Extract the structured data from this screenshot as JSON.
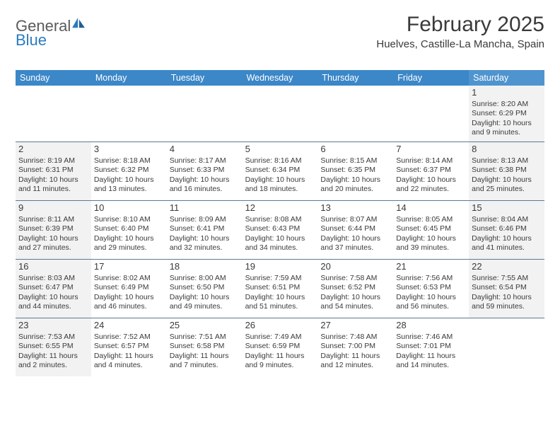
{
  "brand": {
    "word1": "General",
    "word2": "Blue",
    "color1": "#5a5a5a",
    "color2": "#2b7bbf"
  },
  "title": "February 2025",
  "location": "Huelves, Castille-La Mancha, Spain",
  "colors": {
    "header_bg": "#3b87c8",
    "header_sat_bg": "#4f94cf",
    "header_text": "#ffffff",
    "weekend_cell_bg": "#f2f2f2",
    "week_border": "#5a7a95",
    "body_text": "#3a3a3a"
  },
  "weekdays": [
    "Sunday",
    "Monday",
    "Tuesday",
    "Wednesday",
    "Thursday",
    "Friday",
    "Saturday"
  ],
  "weeks": [
    [
      null,
      null,
      null,
      null,
      null,
      null,
      {
        "n": "1",
        "sr": "Sunrise: 8:20 AM",
        "ss": "Sunset: 6:29 PM",
        "dl1": "Daylight: 10 hours",
        "dl2": "and 9 minutes."
      }
    ],
    [
      {
        "n": "2",
        "sr": "Sunrise: 8:19 AM",
        "ss": "Sunset: 6:31 PM",
        "dl1": "Daylight: 10 hours",
        "dl2": "and 11 minutes."
      },
      {
        "n": "3",
        "sr": "Sunrise: 8:18 AM",
        "ss": "Sunset: 6:32 PM",
        "dl1": "Daylight: 10 hours",
        "dl2": "and 13 minutes."
      },
      {
        "n": "4",
        "sr": "Sunrise: 8:17 AM",
        "ss": "Sunset: 6:33 PM",
        "dl1": "Daylight: 10 hours",
        "dl2": "and 16 minutes."
      },
      {
        "n": "5",
        "sr": "Sunrise: 8:16 AM",
        "ss": "Sunset: 6:34 PM",
        "dl1": "Daylight: 10 hours",
        "dl2": "and 18 minutes."
      },
      {
        "n": "6",
        "sr": "Sunrise: 8:15 AM",
        "ss": "Sunset: 6:35 PM",
        "dl1": "Daylight: 10 hours",
        "dl2": "and 20 minutes."
      },
      {
        "n": "7",
        "sr": "Sunrise: 8:14 AM",
        "ss": "Sunset: 6:37 PM",
        "dl1": "Daylight: 10 hours",
        "dl2": "and 22 minutes."
      },
      {
        "n": "8",
        "sr": "Sunrise: 8:13 AM",
        "ss": "Sunset: 6:38 PM",
        "dl1": "Daylight: 10 hours",
        "dl2": "and 25 minutes."
      }
    ],
    [
      {
        "n": "9",
        "sr": "Sunrise: 8:11 AM",
        "ss": "Sunset: 6:39 PM",
        "dl1": "Daylight: 10 hours",
        "dl2": "and 27 minutes."
      },
      {
        "n": "10",
        "sr": "Sunrise: 8:10 AM",
        "ss": "Sunset: 6:40 PM",
        "dl1": "Daylight: 10 hours",
        "dl2": "and 29 minutes."
      },
      {
        "n": "11",
        "sr": "Sunrise: 8:09 AM",
        "ss": "Sunset: 6:41 PM",
        "dl1": "Daylight: 10 hours",
        "dl2": "and 32 minutes."
      },
      {
        "n": "12",
        "sr": "Sunrise: 8:08 AM",
        "ss": "Sunset: 6:43 PM",
        "dl1": "Daylight: 10 hours",
        "dl2": "and 34 minutes."
      },
      {
        "n": "13",
        "sr": "Sunrise: 8:07 AM",
        "ss": "Sunset: 6:44 PM",
        "dl1": "Daylight: 10 hours",
        "dl2": "and 37 minutes."
      },
      {
        "n": "14",
        "sr": "Sunrise: 8:05 AM",
        "ss": "Sunset: 6:45 PM",
        "dl1": "Daylight: 10 hours",
        "dl2": "and 39 minutes."
      },
      {
        "n": "15",
        "sr": "Sunrise: 8:04 AM",
        "ss": "Sunset: 6:46 PM",
        "dl1": "Daylight: 10 hours",
        "dl2": "and 41 minutes."
      }
    ],
    [
      {
        "n": "16",
        "sr": "Sunrise: 8:03 AM",
        "ss": "Sunset: 6:47 PM",
        "dl1": "Daylight: 10 hours",
        "dl2": "and 44 minutes."
      },
      {
        "n": "17",
        "sr": "Sunrise: 8:02 AM",
        "ss": "Sunset: 6:49 PM",
        "dl1": "Daylight: 10 hours",
        "dl2": "and 46 minutes."
      },
      {
        "n": "18",
        "sr": "Sunrise: 8:00 AM",
        "ss": "Sunset: 6:50 PM",
        "dl1": "Daylight: 10 hours",
        "dl2": "and 49 minutes."
      },
      {
        "n": "19",
        "sr": "Sunrise: 7:59 AM",
        "ss": "Sunset: 6:51 PM",
        "dl1": "Daylight: 10 hours",
        "dl2": "and 51 minutes."
      },
      {
        "n": "20",
        "sr": "Sunrise: 7:58 AM",
        "ss": "Sunset: 6:52 PM",
        "dl1": "Daylight: 10 hours",
        "dl2": "and 54 minutes."
      },
      {
        "n": "21",
        "sr": "Sunrise: 7:56 AM",
        "ss": "Sunset: 6:53 PM",
        "dl1": "Daylight: 10 hours",
        "dl2": "and 56 minutes."
      },
      {
        "n": "22",
        "sr": "Sunrise: 7:55 AM",
        "ss": "Sunset: 6:54 PM",
        "dl1": "Daylight: 10 hours",
        "dl2": "and 59 minutes."
      }
    ],
    [
      {
        "n": "23",
        "sr": "Sunrise: 7:53 AM",
        "ss": "Sunset: 6:55 PM",
        "dl1": "Daylight: 11 hours",
        "dl2": "and 2 minutes."
      },
      {
        "n": "24",
        "sr": "Sunrise: 7:52 AM",
        "ss": "Sunset: 6:57 PM",
        "dl1": "Daylight: 11 hours",
        "dl2": "and 4 minutes."
      },
      {
        "n": "25",
        "sr": "Sunrise: 7:51 AM",
        "ss": "Sunset: 6:58 PM",
        "dl1": "Daylight: 11 hours",
        "dl2": "and 7 minutes."
      },
      {
        "n": "26",
        "sr": "Sunrise: 7:49 AM",
        "ss": "Sunset: 6:59 PM",
        "dl1": "Daylight: 11 hours",
        "dl2": "and 9 minutes."
      },
      {
        "n": "27",
        "sr": "Sunrise: 7:48 AM",
        "ss": "Sunset: 7:00 PM",
        "dl1": "Daylight: 11 hours",
        "dl2": "and 12 minutes."
      },
      {
        "n": "28",
        "sr": "Sunrise: 7:46 AM",
        "ss": "Sunset: 7:01 PM",
        "dl1": "Daylight: 11 hours",
        "dl2": "and 14 minutes."
      },
      null
    ]
  ]
}
